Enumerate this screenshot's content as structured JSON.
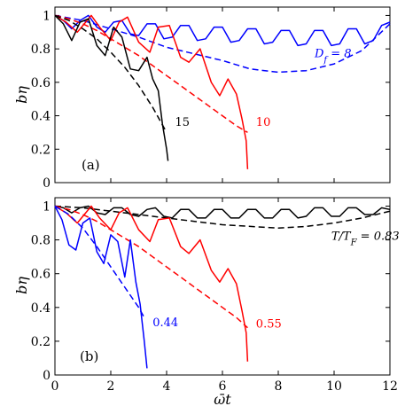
{
  "chart_data": [
    {
      "type": "line",
      "panel_label": "(a)",
      "xlabel": "ω̄t",
      "ylabel": "bη",
      "xlim": [
        0,
        12
      ],
      "ylim": [
        0,
        1.05
      ],
      "x_ticks": [
        0,
        2,
        4,
        6,
        8,
        10,
        12
      ],
      "y_ticks": [
        0,
        0.2,
        0.4,
        0.6,
        0.8,
        1
      ],
      "y_tick_labels": [
        "0",
        "0.2",
        "0.4",
        "0.6",
        "0.8",
        "1"
      ],
      "x_tick_labels": [
        "0",
        "2",
        "4",
        "6",
        "8",
        "10",
        "12"
      ],
      "show_x_tick_labels": false,
      "series": [
        {
          "color": "#0000ff",
          "style": "solid",
          "x": [
            0,
            0.3,
            0.6,
            0.9,
            1.2,
            1.5,
            1.8,
            2.1,
            2.4,
            2.7,
            3.0,
            3.3,
            3.6,
            3.9,
            4.2,
            4.5,
            4.8,
            5.1,
            5.4,
            5.7,
            6.0,
            6.3,
            6.6,
            6.9,
            7.2,
            7.5,
            7.8,
            8.1,
            8.4,
            8.7,
            9.0,
            9.3,
            9.6,
            9.9,
            10.2,
            10.5,
            10.8,
            11.1,
            11.4,
            11.7,
            12.0
          ],
          "y": [
            1.0,
            0.97,
            0.92,
            0.97,
            1.0,
            0.93,
            0.9,
            0.96,
            0.97,
            0.89,
            0.88,
            0.95,
            0.95,
            0.86,
            0.87,
            0.94,
            0.94,
            0.85,
            0.86,
            0.93,
            0.93,
            0.84,
            0.85,
            0.92,
            0.92,
            0.83,
            0.84,
            0.91,
            0.91,
            0.82,
            0.83,
            0.91,
            0.91,
            0.82,
            0.83,
            0.92,
            0.92,
            0.83,
            0.85,
            0.94,
            0.96
          ]
        },
        {
          "color": "#0000ff",
          "style": "dashed",
          "x": [
            0,
            1,
            2,
            3,
            4,
            5,
            6,
            7,
            8,
            9,
            10,
            11,
            12
          ],
          "y": [
            1.0,
            0.97,
            0.92,
            0.87,
            0.81,
            0.77,
            0.73,
            0.68,
            0.66,
            0.67,
            0.71,
            0.79,
            0.95
          ]
        },
        {
          "color": "#ff0000",
          "style": "solid",
          "x": [
            0,
            0.4,
            0.8,
            1.1,
            1.3,
            1.6,
            2.0,
            2.3,
            2.6,
            3.0,
            3.4,
            3.7,
            4.1,
            4.5,
            4.8,
            5.2,
            5.6,
            5.9,
            6.2,
            6.5,
            6.7,
            6.85,
            6.9
          ],
          "y": [
            1.0,
            0.96,
            0.9,
            0.96,
            1.0,
            0.93,
            0.85,
            0.96,
            0.99,
            0.84,
            0.78,
            0.93,
            0.94,
            0.75,
            0.72,
            0.8,
            0.6,
            0.52,
            0.62,
            0.53,
            0.38,
            0.25,
            0.08
          ]
        },
        {
          "color": "#ff0000",
          "style": "dashed",
          "x": [
            0,
            0.5,
            1,
            1.5,
            2,
            2.5,
            3,
            3.5,
            4,
            4.5,
            5,
            5.5,
            6,
            6.5,
            6.9
          ],
          "y": [
            1.0,
            0.98,
            0.95,
            0.91,
            0.86,
            0.81,
            0.76,
            0.7,
            0.64,
            0.58,
            0.52,
            0.46,
            0.4,
            0.34,
            0.3
          ]
        },
        {
          "color": "#000000",
          "style": "solid",
          "x": [
            0,
            0.3,
            0.6,
            0.9,
            1.2,
            1.5,
            1.8,
            2.1,
            2.4,
            2.7,
            3.0,
            3.3,
            3.5,
            3.7,
            3.85,
            4.0,
            4.05
          ],
          "y": [
            1.0,
            0.95,
            0.85,
            0.96,
            0.98,
            0.82,
            0.76,
            0.93,
            0.87,
            0.68,
            0.67,
            0.75,
            0.62,
            0.55,
            0.35,
            0.2,
            0.13
          ]
        },
        {
          "color": "#000000",
          "style": "dashed",
          "x": [
            0,
            0.5,
            1,
            1.5,
            2,
            2.5,
            3,
            3.5,
            4
          ],
          "y": [
            1.0,
            0.97,
            0.92,
            0.86,
            0.78,
            0.69,
            0.58,
            0.45,
            0.3
          ]
        }
      ],
      "annotations": [
        {
          "text": "15",
          "x": 4.3,
          "y": 0.34,
          "color": "#000000"
        },
        {
          "text": "10",
          "x": 7.2,
          "y": 0.34,
          "color": "#ff0000"
        },
        {
          "text": "D_f = 8",
          "x": 9.3,
          "y": 0.75,
          "color": "#0000ff"
        }
      ]
    },
    {
      "type": "line",
      "panel_label": "(b)",
      "xlabel": "ω̄t",
      "ylabel": "bη",
      "xlim": [
        0,
        12
      ],
      "ylim": [
        0,
        1.05
      ],
      "x_ticks": [
        0,
        2,
        4,
        6,
        8,
        10,
        12
      ],
      "y_ticks": [
        0,
        0.2,
        0.4,
        0.6,
        0.8,
        1
      ],
      "y_tick_labels": [
        "0",
        "0.2",
        "0.4",
        "0.6",
        "0.8",
        "1"
      ],
      "x_tick_labels": [
        "0",
        "2",
        "4",
        "6",
        "8",
        "10",
        "12"
      ],
      "show_x_tick_labels": true,
      "series": [
        {
          "color": "#000000",
          "style": "solid",
          "x": [
            0,
            0.3,
            0.6,
            0.9,
            1.2,
            1.5,
            1.8,
            2.1,
            2.4,
            2.7,
            3.0,
            3.3,
            3.6,
            3.9,
            4.2,
            4.5,
            4.8,
            5.1,
            5.4,
            5.7,
            6.0,
            6.3,
            6.6,
            6.9,
            7.2,
            7.5,
            7.8,
            8.1,
            8.4,
            8.7,
            9.0,
            9.3,
            9.6,
            9.9,
            10.2,
            10.5,
            10.8,
            11.1,
            11.4,
            11.7,
            12.0
          ],
          "y": [
            1.0,
            0.99,
            0.96,
            0.99,
            1.0,
            0.96,
            0.95,
            0.99,
            0.99,
            0.95,
            0.94,
            0.98,
            0.99,
            0.94,
            0.93,
            0.98,
            0.98,
            0.93,
            0.93,
            0.98,
            0.98,
            0.93,
            0.93,
            0.98,
            0.98,
            0.93,
            0.93,
            0.98,
            0.98,
            0.93,
            0.94,
            0.99,
            0.99,
            0.94,
            0.94,
            0.99,
            0.99,
            0.95,
            0.95,
            0.99,
            0.98
          ]
        },
        {
          "color": "#000000",
          "style": "dashed",
          "x": [
            0,
            1,
            2,
            3,
            4,
            5,
            6,
            7,
            8,
            9,
            10,
            11,
            12
          ],
          "y": [
            1.0,
            0.99,
            0.97,
            0.95,
            0.93,
            0.91,
            0.89,
            0.88,
            0.87,
            0.88,
            0.9,
            0.93,
            0.97
          ]
        },
        {
          "color": "#ff0000",
          "style": "solid",
          "x": [
            0,
            0.4,
            0.8,
            1.1,
            1.3,
            1.6,
            2.0,
            2.3,
            2.6,
            3.0,
            3.4,
            3.7,
            4.1,
            4.5,
            4.8,
            5.2,
            5.6,
            5.9,
            6.2,
            6.5,
            6.7,
            6.85,
            6.9
          ],
          "y": [
            1.0,
            0.96,
            0.9,
            0.96,
            1.0,
            0.93,
            0.86,
            0.96,
            0.99,
            0.86,
            0.79,
            0.92,
            0.93,
            0.76,
            0.72,
            0.8,
            0.62,
            0.55,
            0.63,
            0.54,
            0.38,
            0.25,
            0.08
          ]
        },
        {
          "color": "#ff0000",
          "style": "dashed",
          "x": [
            0,
            0.5,
            1,
            1.5,
            2,
            2.5,
            3,
            3.5,
            4,
            4.5,
            5,
            5.5,
            6,
            6.5,
            6.9
          ],
          "y": [
            1.0,
            0.98,
            0.95,
            0.91,
            0.86,
            0.81,
            0.76,
            0.7,
            0.64,
            0.58,
            0.52,
            0.46,
            0.4,
            0.34,
            0.28
          ]
        },
        {
          "color": "#0000ff",
          "style": "solid",
          "x": [
            0,
            0.25,
            0.5,
            0.75,
            1.0,
            1.25,
            1.5,
            1.75,
            2.0,
            2.25,
            2.5,
            2.7,
            2.9,
            3.05,
            3.2,
            3.3
          ],
          "y": [
            1.0,
            0.92,
            0.77,
            0.74,
            0.9,
            0.93,
            0.73,
            0.66,
            0.83,
            0.79,
            0.58,
            0.8,
            0.55,
            0.42,
            0.2,
            0.04
          ]
        },
        {
          "color": "#0000ff",
          "style": "dashed",
          "x": [
            0,
            0.5,
            1,
            1.5,
            2,
            2.5,
            3,
            3.2
          ],
          "y": [
            1.0,
            0.95,
            0.87,
            0.76,
            0.64,
            0.52,
            0.4,
            0.34
          ]
        }
      ],
      "annotations": [
        {
          "text": "T/T_F = 0.83",
          "x": 9.9,
          "y": 0.8,
          "color": "#000000"
        },
        {
          "text": "0.55",
          "x": 7.2,
          "y": 0.28,
          "color": "#ff0000"
        },
        {
          "text": "0.44",
          "x": 3.5,
          "y": 0.29,
          "color": "#0000ff"
        }
      ]
    }
  ]
}
